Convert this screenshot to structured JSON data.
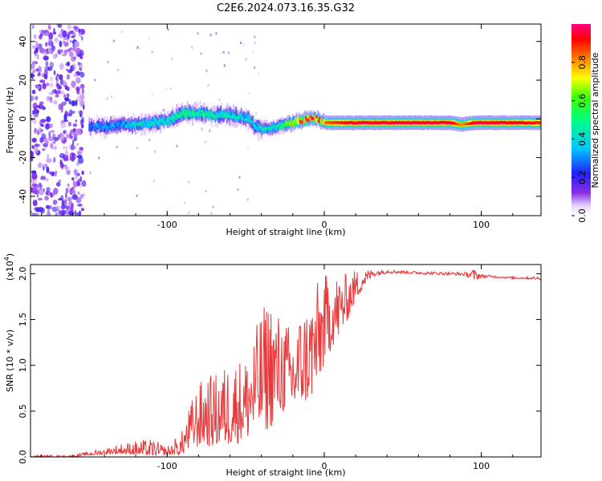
{
  "title": "C2E6.2024.073.16.35.G32",
  "chart_data": [
    {
      "type": "heatmap",
      "xlabel": "Height of straight line (km)",
      "ylabel": "Frequency (Hz)",
      "xlim": [
        -187,
        138
      ],
      "ylim": [
        -50,
        49
      ],
      "x_ticks": [
        -100,
        0,
        100
      ],
      "x_tick_labels": [
        "-100",
        "0",
        "100"
      ],
      "y_ticks": [
        -40,
        -20,
        0,
        20,
        40
      ],
      "y_tick_labels": [
        "-40",
        "-20",
        "0",
        "20",
        "40"
      ],
      "colorbar": {
        "label": "Normalized spectral amplitude",
        "range": [
          0,
          1
        ],
        "ticks": [
          0.0,
          0.2,
          0.4,
          0.6,
          0.8
        ],
        "tick_labels": [
          "0.0",
          "0.2",
          "0.4",
          "0.6",
          "0.8"
        ]
      },
      "ridge": {
        "x": [
          -150,
          -140,
          -130,
          -120,
          -110,
          -100,
          -95,
          -90,
          -80,
          -70,
          -60,
          -55,
          -48,
          -45,
          -40,
          -35,
          -30,
          -25,
          -20,
          -15,
          -10,
          -5,
          0,
          10,
          20,
          40,
          60,
          80,
          87,
          95,
          110,
          138
        ],
        "frequency": [
          -4,
          -4,
          -3,
          -3,
          -2,
          -1,
          1,
          3,
          3,
          2,
          2,
          1,
          0,
          -4,
          -5,
          -5,
          -4,
          -3,
          -2,
          -1,
          0,
          0,
          -2,
          -2,
          -2,
          -2,
          -2,
          -2,
          -3,
          -2,
          -2,
          -2
        ],
        "amplitude": [
          0.3,
          0.35,
          0.35,
          0.4,
          0.45,
          0.45,
          0.5,
          0.55,
          0.5,
          0.5,
          0.45,
          0.45,
          0.4,
          0.4,
          0.45,
          0.45,
          0.5,
          0.6,
          0.8,
          0.9,
          1.0,
          0.9,
          0.85,
          0.9,
          0.95,
          0.95,
          0.95,
          0.95,
          0.8,
          0.95,
          0.95,
          0.9
        ]
      },
      "noise_region_x": [
        -187,
        -153
      ]
    },
    {
      "type": "line",
      "xlabel": "Height of straight line (km)",
      "ylabel": "SNR (10 * v/v)",
      "y_scale_label": "(x10",
      "y_scale_exponent": "4",
      "xlim": [
        -187,
        138
      ],
      "ylim": [
        0,
        2.1
      ],
      "x_ticks": [
        -100,
        0,
        100
      ],
      "x_tick_labels": [
        "-100",
        "0",
        "100"
      ],
      "y_ticks": [
        0,
        0.5,
        1.0,
        1.5,
        2.0
      ],
      "y_tick_labels": [
        "0.0",
        "0.5",
        "1.0",
        "1.5",
        "2.0"
      ],
      "series": [
        {
          "color": "#e8393b",
          "envelope_x": [
            -187,
            -160,
            -150,
            -140,
            -130,
            -120,
            -110,
            -100,
            -90,
            -85,
            -80,
            -75,
            -70,
            -60,
            -50,
            -40,
            -35,
            -30,
            -25,
            -20,
            -15,
            -10,
            -5,
            0,
            5,
            10,
            15,
            20,
            25,
            30,
            40,
            60,
            80,
            90,
            95,
            100,
            110,
            120,
            138
          ],
          "envelope_lo": [
            0.0,
            0.0,
            0.02,
            0.03,
            0.04,
            0.03,
            0.02,
            0.02,
            0.03,
            0.08,
            0.1,
            0.12,
            0.1,
            0.12,
            0.18,
            0.25,
            0.3,
            0.4,
            0.5,
            0.45,
            0.55,
            0.6,
            0.7,
            1.0,
            1.2,
            1.3,
            1.5,
            1.7,
            1.85,
            1.95,
            2.0,
            1.99,
            1.98,
            1.97,
            1.9,
            1.95,
            1.95,
            1.94,
            1.93
          ],
          "envelope_hi": [
            0.02,
            0.02,
            0.06,
            0.1,
            0.15,
            0.18,
            0.2,
            0.12,
            0.3,
            0.6,
            0.8,
            0.9,
            0.9,
            1.05,
            1.1,
            1.6,
            1.8,
            1.6,
            1.5,
            1.4,
            1.6,
            1.7,
            1.9,
            2.0,
            2.0,
            2.0,
            2.0,
            2.05,
            2.05,
            2.05,
            2.05,
            2.03,
            2.02,
            2.02,
            2.07,
            2.0,
            1.98,
            1.97,
            1.97
          ]
        }
      ]
    }
  ],
  "colors": {
    "line": "#e8393b",
    "frame": "#000000",
    "background": "#ffffff"
  }
}
